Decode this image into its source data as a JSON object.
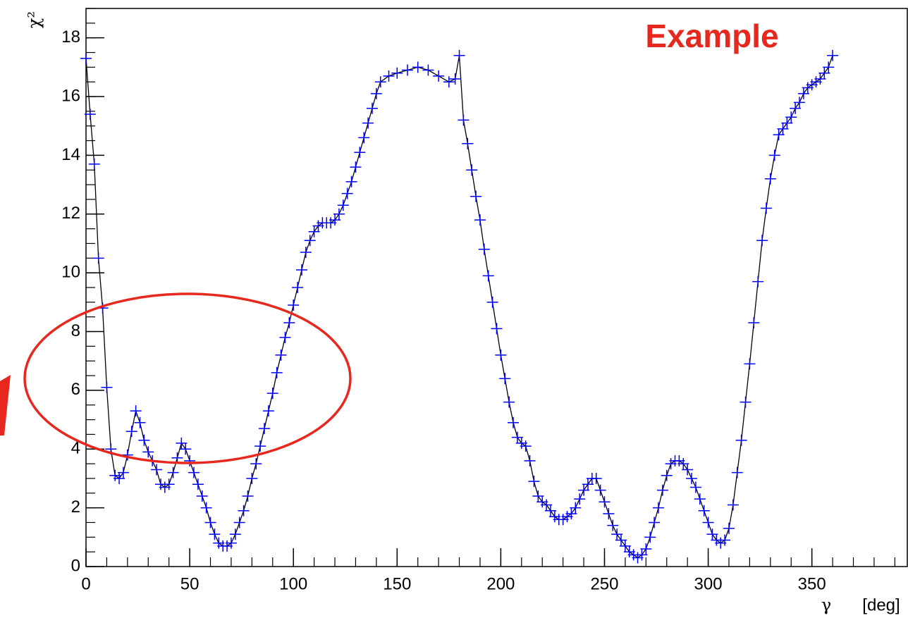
{
  "chart_data": {
    "type": "line",
    "annotation": "Example",
    "y_label": "χ²",
    "x_label": "γ",
    "x_unit": "[deg]",
    "xlim": [
      0,
      396
    ],
    "ylim": [
      0,
      19
    ],
    "xticks": [
      0,
      50,
      100,
      150,
      200,
      250,
      300,
      350
    ],
    "yticks": [
      0,
      2,
      4,
      6,
      8,
      10,
      12,
      14,
      16,
      18
    ],
    "marker_color": "#0000ff",
    "line_color": "#000000",
    "x": [
      0,
      2,
      4,
      6,
      8,
      10,
      12,
      14,
      16,
      18,
      20,
      22,
      24,
      26,
      28,
      30,
      32,
      34,
      36,
      38,
      40,
      42,
      44,
      46,
      48,
      50,
      52,
      54,
      56,
      58,
      60,
      62,
      64,
      66,
      68,
      70,
      72,
      74,
      76,
      78,
      80,
      82,
      84,
      86,
      88,
      90,
      92,
      94,
      96,
      98,
      100,
      102,
      104,
      106,
      108,
      110,
      112,
      114,
      116,
      118,
      120,
      122,
      124,
      126,
      128,
      130,
      132,
      134,
      136,
      138,
      140,
      142,
      146,
      150,
      155,
      160,
      165,
      170,
      175,
      178,
      180,
      182,
      184,
      186,
      188,
      190,
      192,
      194,
      196,
      198,
      200,
      202,
      204,
      206,
      208,
      210,
      212,
      214,
      216,
      218,
      220,
      222,
      224,
      226,
      228,
      230,
      232,
      234,
      236,
      238,
      240,
      242,
      244,
      246,
      248,
      250,
      252,
      254,
      256,
      258,
      260,
      262,
      264,
      266,
      268,
      270,
      272,
      274,
      276,
      278,
      280,
      282,
      284,
      286,
      288,
      290,
      292,
      294,
      296,
      298,
      300,
      302,
      304,
      306,
      308,
      310,
      312,
      314,
      316,
      318,
      320,
      322,
      324,
      326,
      328,
      330,
      332,
      334,
      336,
      338,
      340,
      342,
      344,
      346,
      348,
      350,
      352,
      354,
      356,
      358,
      360
    ],
    "values": [
      17.3,
      15.4,
      13.7,
      10.5,
      8.8,
      6.1,
      4.0,
      3.1,
      3.0,
      3.2,
      3.8,
      4.6,
      5.3,
      4.9,
      4.3,
      3.9,
      3.6,
      3.3,
      2.8,
      2.7,
      2.8,
      3.2,
      3.7,
      4.2,
      4.0,
      3.6,
      3.2,
      2.8,
      2.4,
      2.0,
      1.5,
      1.1,
      0.8,
      0.7,
      0.7,
      0.8,
      1.1,
      1.5,
      1.9,
      2.4,
      3.0,
      3.5,
      4.1,
      4.7,
      5.3,
      5.9,
      6.6,
      7.2,
      7.8,
      8.3,
      8.9,
      9.5,
      10.1,
      10.7,
      11.1,
      11.4,
      11.6,
      11.7,
      11.7,
      11.7,
      11.8,
      12.0,
      12.3,
      12.7,
      13.1,
      13.6,
      14.1,
      14.6,
      15.1,
      15.6,
      16.1,
      16.5,
      16.7,
      16.8,
      16.9,
      17.0,
      16.9,
      16.7,
      16.5,
      16.6,
      17.4,
      15.2,
      14.4,
      13.5,
      12.6,
      11.8,
      10.8,
      9.9,
      9.0,
      8.1,
      7.2,
      6.4,
      5.6,
      4.9,
      4.4,
      4.2,
      4.1,
      3.6,
      2.9,
      2.4,
      2.2,
      2.1,
      1.9,
      1.7,
      1.6,
      1.6,
      1.7,
      1.8,
      2.0,
      2.3,
      2.6,
      2.8,
      3.0,
      3.0,
      2.6,
      2.2,
      1.8,
      1.4,
      1.1,
      0.9,
      0.7,
      0.5,
      0.4,
      0.3,
      0.4,
      0.6,
      1.0,
      1.5,
      2.0,
      2.6,
      3.1,
      3.5,
      3.6,
      3.6,
      3.5,
      3.3,
      3.0,
      2.7,
      2.3,
      1.9,
      1.5,
      1.1,
      0.9,
      0.8,
      0.9,
      1.3,
      2.1,
      3.2,
      4.3,
      5.6,
      6.9,
      8.3,
      9.7,
      11.1,
      12.2,
      13.2,
      14.0,
      14.7,
      14.9,
      15.1,
      15.3,
      15.6,
      15.8,
      16.1,
      16.3,
      16.4,
      16.5,
      16.6,
      16.8,
      17.0,
      17.4
    ]
  }
}
